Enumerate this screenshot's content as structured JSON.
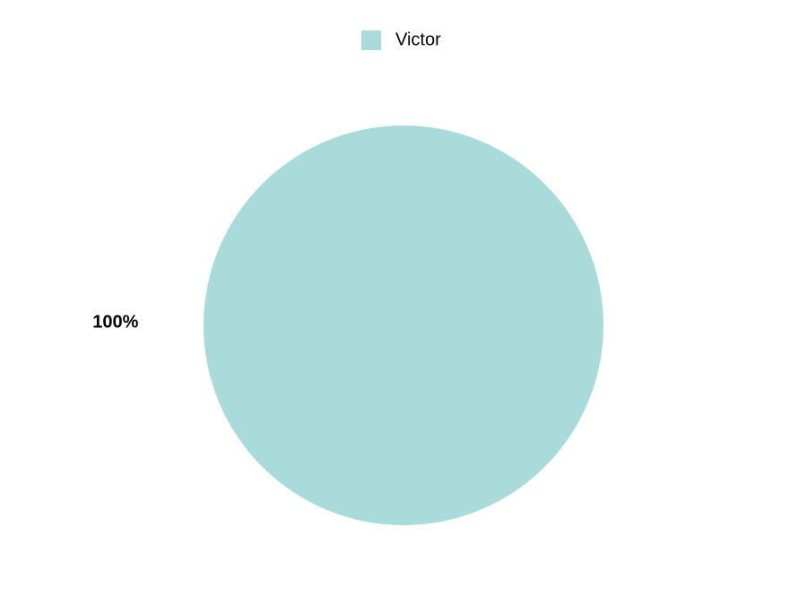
{
  "chart_data": {
    "type": "pie",
    "series": [
      {
        "name": "Victor",
        "color": "#aadbdb",
        "values": [
          100
        ],
        "value_labels": [
          "100%"
        ]
      }
    ]
  }
}
